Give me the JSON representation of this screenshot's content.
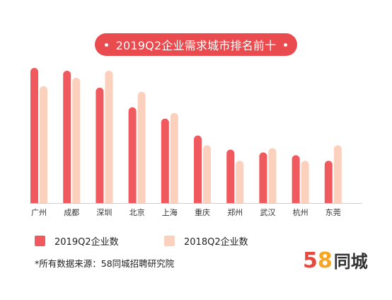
{
  "colors": {
    "series_2019": "#f05a5f",
    "series_2018": "#fbd1bd",
    "title_bg": "#e94b4e",
    "brand_5": "#e8473b",
    "brand_8": "#f5a623"
  },
  "chart_data": {
    "type": "bar",
    "title": "2019Q2企业需求城市排名前十",
    "categories": [
      "广州",
      "成都",
      "深圳",
      "北京",
      "上海",
      "重庆",
      "郑州",
      "武汉",
      "杭州",
      "东莞"
    ],
    "series": [
      {
        "name": "2019Q2企业数",
        "values": [
          96,
          94,
          82,
          68,
          60,
          48,
          38,
          36,
          34,
          30
        ]
      },
      {
        "name": "2018Q2企业数",
        "values": [
          83,
          89,
          94,
          79,
          64,
          41,
          30,
          39,
          30,
          41
        ]
      }
    ],
    "ylim": [
      0,
      100
    ],
    "grid": false,
    "legend": "bottom-left"
  },
  "footnote": "*所有数据来源：58同城招聘研究院",
  "brand": {
    "digit_5": "5",
    "digit_8": "8",
    "name": "同城"
  }
}
